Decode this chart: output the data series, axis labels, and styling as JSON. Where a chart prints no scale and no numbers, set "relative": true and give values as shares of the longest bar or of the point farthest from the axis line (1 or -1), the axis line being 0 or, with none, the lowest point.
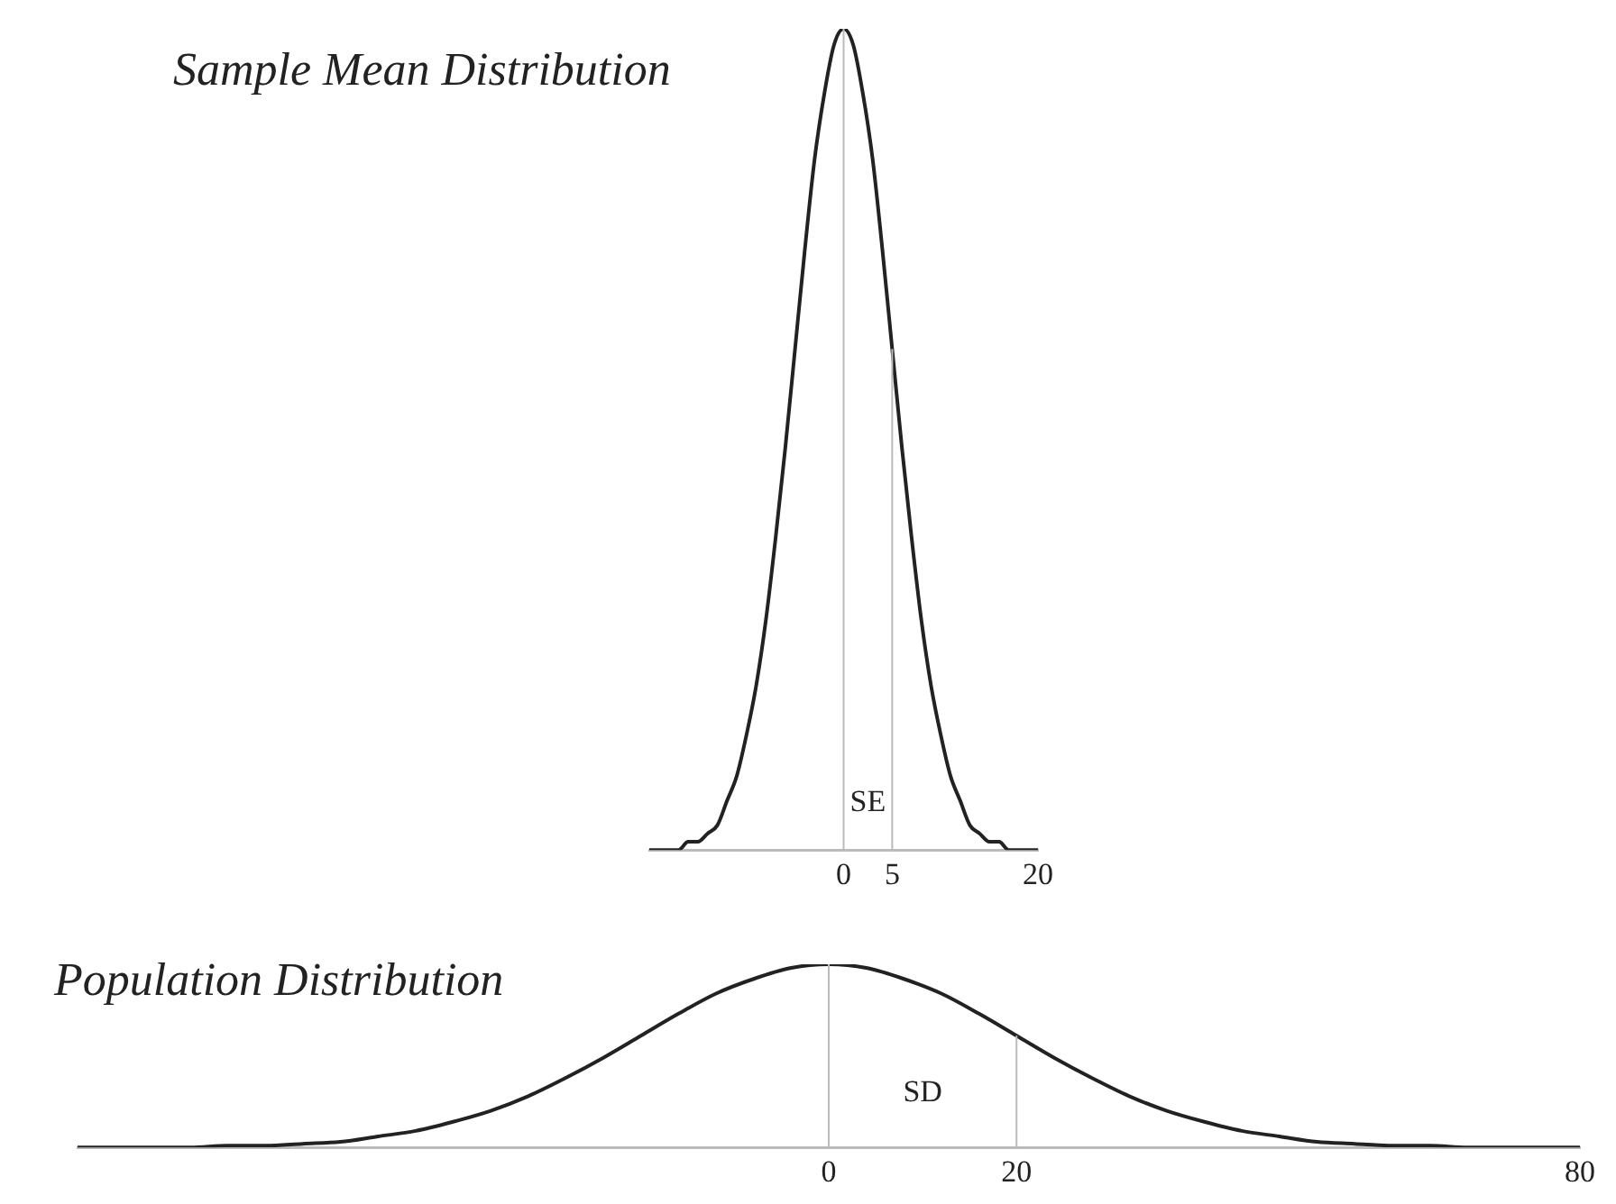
{
  "chart_data": [
    {
      "type": "line",
      "title": "Sample Mean Distribution",
      "relative": true,
      "tick_labels": "x",
      "x": [
        -20,
        -19,
        -18,
        -17,
        -16,
        -15,
        -14,
        -13,
        -12,
        -11,
        -10,
        -9,
        -8,
        -7,
        -6,
        -5,
        -4,
        -3,
        -2,
        -1,
        0,
        1,
        2,
        3,
        4,
        5,
        6,
        7,
        8,
        9,
        10,
        11,
        12,
        13,
        14,
        15,
        16,
        17,
        18,
        19,
        20
      ],
      "xlim": [
        -20,
        20
      ],
      "xticks": [
        0,
        5,
        20
      ],
      "series": [
        {
          "color": "#222222",
          "values": [
            0,
            0,
            0,
            0,
            0.01,
            0.01,
            0.02,
            0.03,
            0.06,
            0.09,
            0.14,
            0.2,
            0.28,
            0.38,
            0.49,
            0.61,
            0.73,
            0.84,
            0.92,
            0.98,
            1,
            0.98,
            0.92,
            0.84,
            0.73,
            0.61,
            0.49,
            0.38,
            0.28,
            0.2,
            0.14,
            0.09,
            0.06,
            0.03,
            0.02,
            0.01,
            0.01,
            0,
            0,
            0,
            0
          ]
        }
      ],
      "ref_lines": [
        {
          "axis": "x",
          "value": 0,
          "color": "#bbbbbb"
        },
        {
          "axis": "x",
          "value": 5,
          "color": "#bbbbbb"
        }
      ],
      "annotations": [
        "SE"
      ]
    },
    {
      "type": "line",
      "title": "Population Distribution",
      "relative": true,
      "tick_labels": "x",
      "x": [
        -80,
        -76,
        -72,
        -68,
        -64,
        -60,
        -56,
        -52,
        -48,
        -44,
        -40,
        -36,
        -32,
        -28,
        -24,
        -20,
        -16,
        -12,
        -8,
        -4,
        0,
        4,
        8,
        12,
        16,
        20,
        24,
        28,
        32,
        36,
        40,
        44,
        48,
        52,
        56,
        60,
        64,
        68,
        72,
        76,
        80
      ],
      "xlim": [
        -80,
        80
      ],
      "xticks": [
        0,
        20,
        80
      ],
      "series": [
        {
          "color": "#222222",
          "values": [
            0,
            0,
            0,
            0,
            0.01,
            0.01,
            0.02,
            0.03,
            0.06,
            0.09,
            0.14,
            0.2,
            0.28,
            0.38,
            0.49,
            0.61,
            0.73,
            0.84,
            0.92,
            0.98,
            1,
            0.98,
            0.92,
            0.84,
            0.73,
            0.61,
            0.49,
            0.38,
            0.28,
            0.2,
            0.14,
            0.09,
            0.06,
            0.03,
            0.02,
            0.01,
            0.01,
            0,
            0,
            0,
            0
          ]
        }
      ],
      "ref_lines": [
        {
          "axis": "x",
          "value": 0,
          "color": "#bbbbbb"
        },
        {
          "axis": "x",
          "value": 20,
          "color": "#bbbbbb"
        }
      ],
      "annotations": [
        "SD"
      ]
    }
  ]
}
